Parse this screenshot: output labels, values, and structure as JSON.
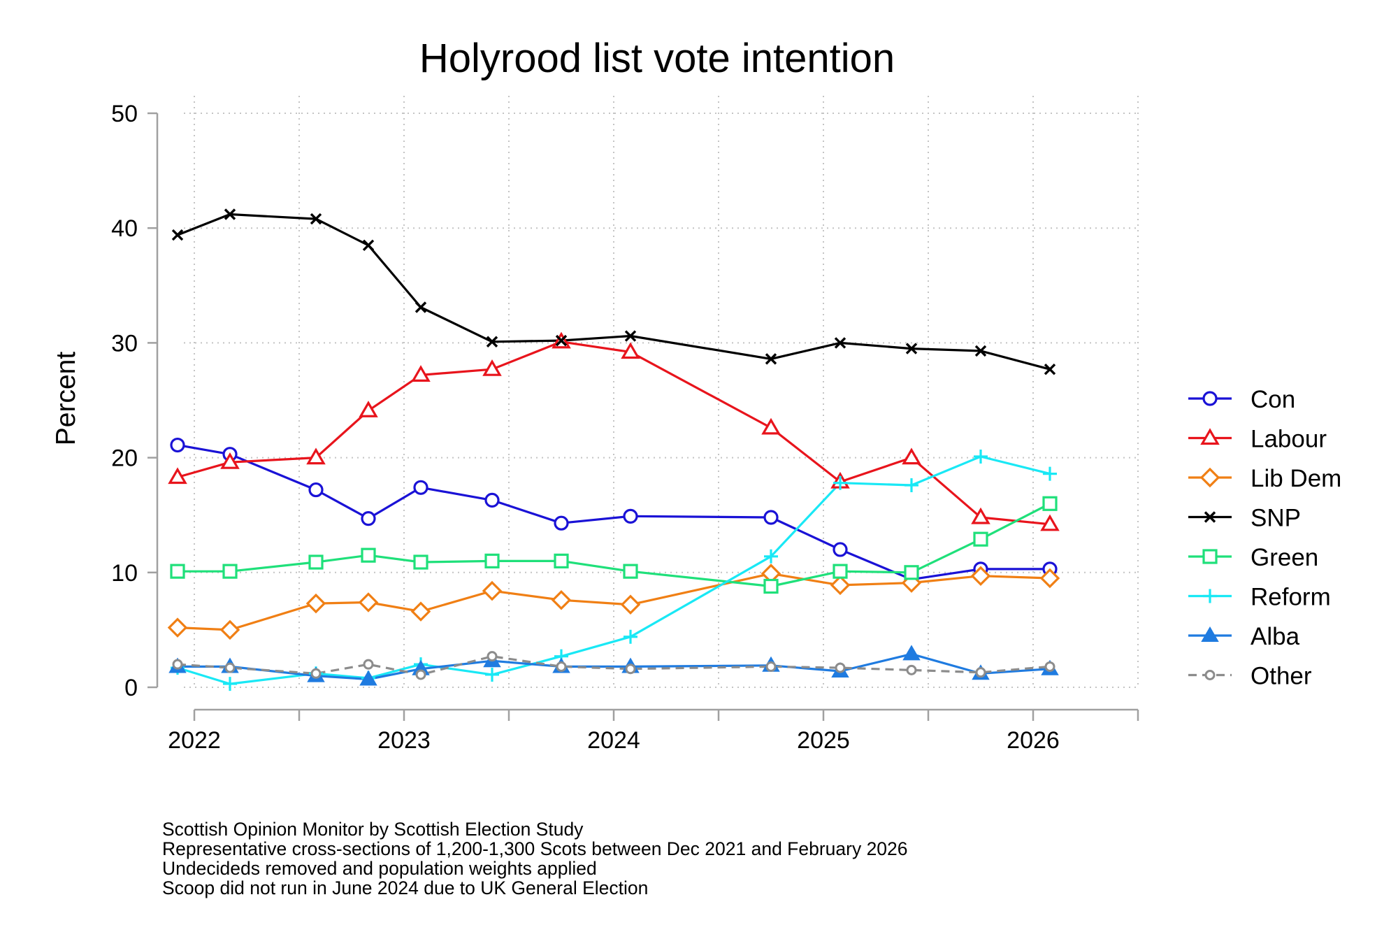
{
  "chart_data": {
    "type": "line",
    "title": "Holyrood list vote intention",
    "ylabel": "Percent",
    "xlabel": "",
    "ylim": [
      0,
      50
    ],
    "yticks": [
      0,
      10,
      20,
      30,
      40,
      50
    ],
    "xlim": [
      2021.95,
      2026.5
    ],
    "xticks": [
      2022,
      2023,
      2024,
      2025,
      2026
    ],
    "xtick_labels": [
      "2022",
      "2023",
      "2024",
      "2025",
      "2026"
    ],
    "x_minor_ticks": [
      2022.5,
      2023.5,
      2024.5,
      2025.5,
      2026.5
    ],
    "x_axis_unit": "year",
    "grid": true,
    "legend_position": "right",
    "x": [
      2021.92,
      2022.17,
      2022.58,
      2022.83,
      2023.08,
      2023.42,
      2023.75,
      2024.08,
      2024.75,
      2025.08,
      2025.42,
      2025.75,
      2026.08
    ],
    "series": [
      {
        "name": "Con",
        "color": "#1a12d6",
        "marker": "circle",
        "dash": "solid",
        "values": [
          21.1,
          20.3,
          17.2,
          14.7,
          17.4,
          16.3,
          14.3,
          14.9,
          14.8,
          12.0,
          9.4,
          10.3,
          10.3
        ]
      },
      {
        "name": "Labour",
        "color": "#e8141c",
        "marker": "triangle",
        "dash": "solid",
        "values": [
          18.3,
          19.6,
          20.0,
          24.1,
          27.2,
          27.7,
          30.1,
          29.2,
          22.6,
          17.9,
          20.0,
          14.8,
          14.2
        ]
      },
      {
        "name": "Lib Dem",
        "color": "#f07f14",
        "marker": "diamond",
        "dash": "solid",
        "values": [
          5.2,
          5.0,
          7.3,
          7.4,
          6.6,
          8.4,
          7.6,
          7.2,
          9.9,
          8.9,
          9.1,
          9.7,
          9.5
        ]
      },
      {
        "name": "SNP",
        "color": "#000000",
        "marker": "x",
        "dash": "solid",
        "values": [
          39.4,
          41.2,
          40.8,
          38.5,
          33.1,
          30.1,
          30.2,
          30.6,
          28.6,
          30.0,
          29.5,
          29.3,
          27.7
        ]
      },
      {
        "name": "Green",
        "color": "#1fe07a",
        "marker": "square",
        "dash": "solid",
        "values": [
          10.1,
          10.1,
          10.9,
          11.5,
          10.9,
          11.0,
          11.0,
          10.1,
          8.8,
          10.1,
          10.0,
          12.9,
          16.0
        ]
      },
      {
        "name": "Reform",
        "color": "#19e8f5",
        "marker": "plus",
        "dash": "solid",
        "values": [
          1.7,
          0.3,
          1.2,
          0.8,
          2.0,
          1.1,
          2.7,
          4.4,
          11.4,
          17.8,
          17.6,
          20.1,
          18.6
        ]
      },
      {
        "name": "Alba",
        "color": "#1f7be0",
        "marker": "filled-triangle",
        "dash": "solid",
        "values": [
          1.8,
          1.8,
          1.0,
          0.7,
          1.6,
          2.3,
          1.8,
          1.8,
          1.9,
          1.4,
          2.9,
          1.2,
          1.6
        ]
      },
      {
        "name": "Other",
        "color": "#8c8c8c",
        "marker": "small-circle",
        "dash": "dash",
        "values": [
          2.0,
          1.7,
          1.2,
          2.0,
          1.1,
          2.7,
          1.8,
          1.6,
          1.8,
          1.7,
          1.5,
          1.3,
          1.8
        ]
      }
    ],
    "notes": [
      "Scottish Opinion Monitor by Scottish Election Study",
      "Representative cross-sections of 1,200-1,300 Scots between Dec 2021 and February 2026",
      "Undecideds removed and population weights applied",
      "Scoop did not run in June 2024 due to UK General Election"
    ]
  }
}
